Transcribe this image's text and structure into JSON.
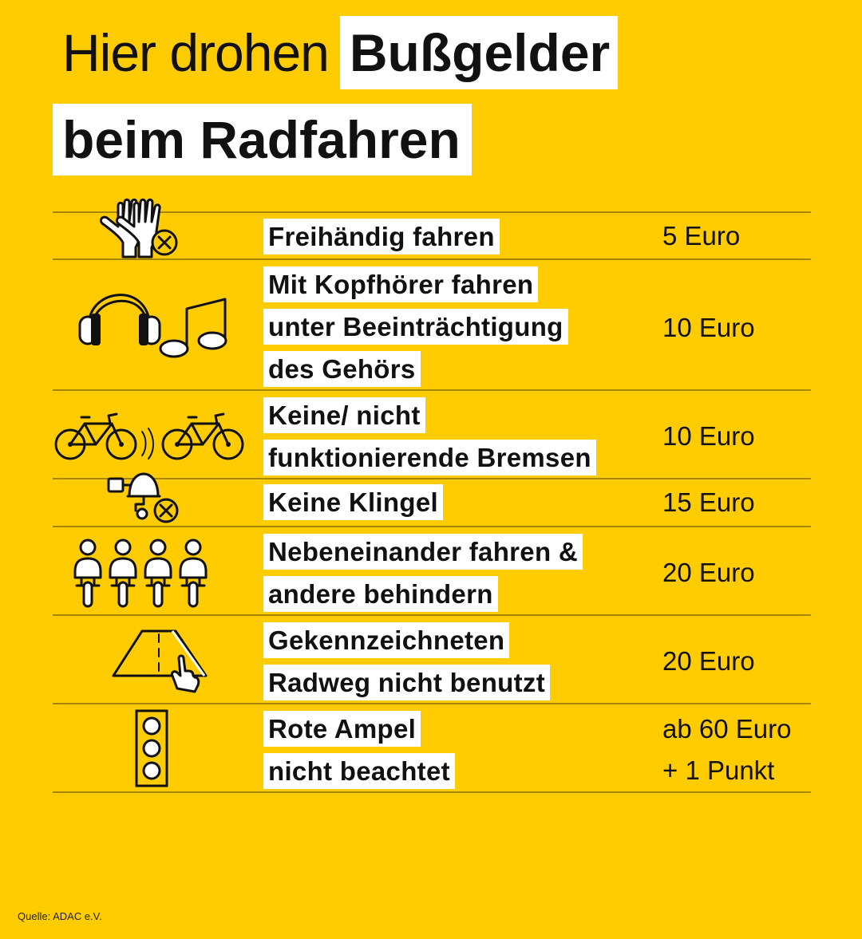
{
  "title": {
    "line1_plain": "Hier drohen",
    "line1_highlight": "Bußgelder",
    "line2": "beim Radfahren"
  },
  "fines": [
    {
      "icon": "gloves-x-icon",
      "lines": [
        "Freihändig fahren"
      ],
      "price_lines": [
        "5 Euro"
      ]
    },
    {
      "icon": "headphones-music-icon",
      "lines": [
        "Mit Kopfhörer fahren",
        "unter Beeinträchtigung",
        "des Gehörs"
      ],
      "price_lines": [
        "10 Euro"
      ]
    },
    {
      "icon": "bicycles-icon",
      "lines": [
        "Keine/ nicht",
        "funktionierende Bremsen"
      ],
      "price_lines": [
        "10 Euro"
      ]
    },
    {
      "icon": "bell-x-icon",
      "lines": [
        "Keine Klingel"
      ],
      "price_lines": [
        "15 Euro"
      ]
    },
    {
      "icon": "cyclists-side-by-side-icon",
      "lines": [
        "Nebeneinander fahren &",
        "andere behindern"
      ],
      "price_lines": [
        "20 Euro"
      ]
    },
    {
      "icon": "bike-lane-pointer-icon",
      "lines": [
        "Gekennzeichneten",
        "Radweg nicht benutzt"
      ],
      "price_lines": [
        "20 Euro"
      ]
    },
    {
      "icon": "traffic-light-icon",
      "lines": [
        "Rote Ampel",
        "nicht beachtet"
      ],
      "price_lines": [
        "ab 60 Euro",
        "+ 1 Punkt"
      ]
    }
  ],
  "source": "Quelle: ADAC e.V.",
  "colors": {
    "background": "#FECC00",
    "highlight": "#FFFFFF",
    "text": "#111111"
  }
}
